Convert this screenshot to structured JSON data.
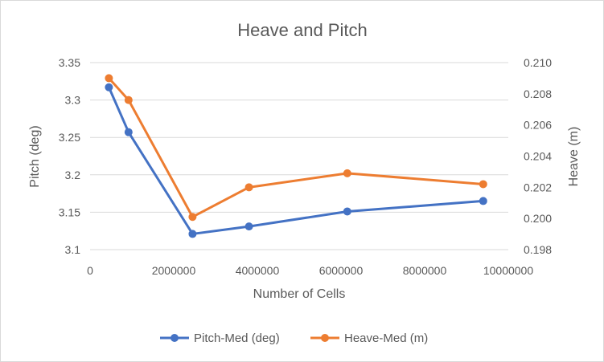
{
  "chart_data": {
    "type": "line",
    "title": "Heave and Pitch",
    "xlabel": "Number of Cells",
    "ylabel": "Pitch (deg)",
    "y2label": "Heave (m)",
    "xlim": [
      0,
      10000000
    ],
    "xticks": [
      0,
      2000000,
      4000000,
      6000000,
      8000000,
      10000000
    ],
    "xtick_labels": [
      "0",
      "2000000",
      "4000000",
      "6000000",
      "8000000",
      "10000000"
    ],
    "ylim": [
      3.1,
      3.35
    ],
    "yticks": [
      3.1,
      3.15,
      3.2,
      3.25,
      3.3,
      3.35
    ],
    "ytick_labels": [
      "3.1",
      "3.15",
      "3.2",
      "3.25",
      "3.3",
      "3.35"
    ],
    "y2lim": [
      0.198,
      0.21
    ],
    "y2ticks": [
      0.198,
      0.2,
      0.202,
      0.204,
      0.206,
      0.208,
      0.21
    ],
    "y2tick_labels": [
      "0.198",
      "0.200",
      "0.202",
      "0.204",
      "0.206",
      "0.208",
      "0.210"
    ],
    "grid": "horizontal",
    "legend_position": "bottom",
    "series": [
      {
        "name": "Pitch-Med (deg)",
        "axis": "left",
        "color": "#4472c4",
        "x": [
          450000,
          920000,
          2450000,
          3800000,
          6150000,
          9400000
        ],
        "y": [
          3.317,
          3.257,
          3.121,
          3.131,
          3.151,
          3.165
        ]
      },
      {
        "name": "Heave-Med (m)",
        "axis": "right",
        "color": "#ed7d31",
        "x": [
          450000,
          920000,
          2450000,
          3800000,
          6150000,
          9400000
        ],
        "y": [
          0.209,
          0.2076,
          0.2001,
          0.202,
          0.2029,
          0.2022
        ]
      }
    ]
  }
}
